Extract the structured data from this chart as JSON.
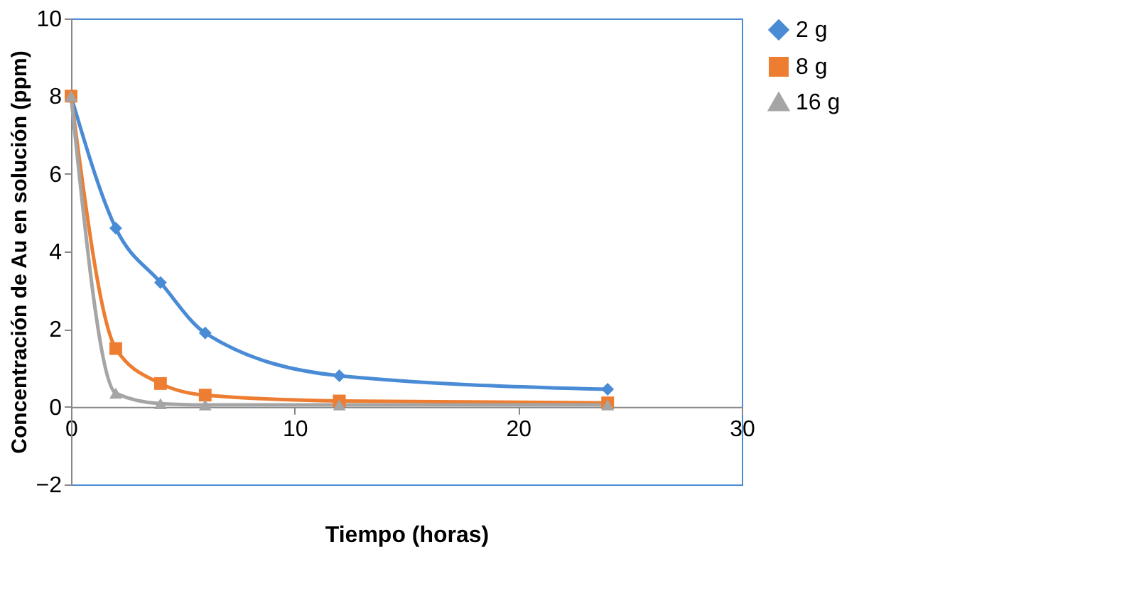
{
  "chart_data": {
    "type": "line",
    "xlabel": "Tiempo (horas)",
    "ylabel": "Concentración de Au en solución (ppm)",
    "x": [
      0,
      2,
      4,
      6,
      12,
      24
    ],
    "series": [
      {
        "name": "2 g",
        "color": "#4a8bd6",
        "marker": "diamond",
        "values": [
          8,
          4.6,
          3.2,
          1.9,
          0.8,
          0.45
        ]
      },
      {
        "name": "8 g",
        "color": "#ed7d31",
        "marker": "square",
        "values": [
          8,
          1.5,
          0.6,
          0.3,
          0.15,
          0.1
        ]
      },
      {
        "name": "16 g",
        "color": "#a5a5a5",
        "marker": "triangle",
        "values": [
          8,
          0.35,
          0.08,
          0.05,
          0.05,
          0.05
        ]
      }
    ],
    "xlim": [
      0,
      30
    ],
    "xticks": [
      0,
      10,
      20,
      30
    ],
    "ylim": [
      -2,
      10
    ],
    "yticks": [
      -2,
      0,
      2,
      4,
      6,
      8,
      10
    ],
    "grid": false,
    "legend": "right",
    "line_style": "solid"
  }
}
